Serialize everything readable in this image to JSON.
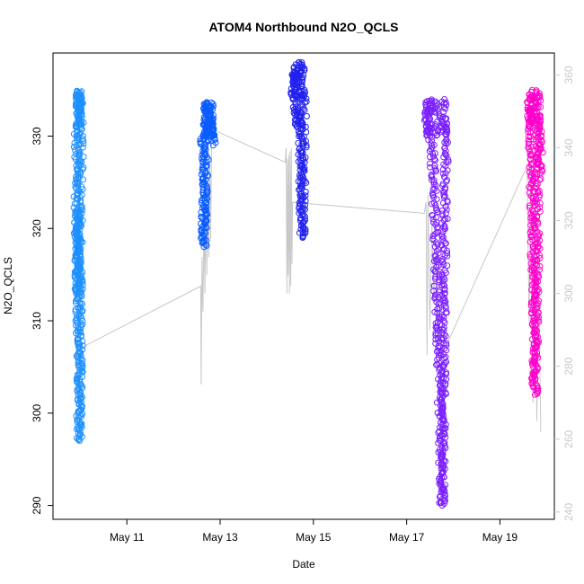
{
  "chart_data": {
    "type": "scatter",
    "title": "ATOM4 Northbound N2O_QCLS",
    "xlabel": "Date",
    "ylabel": "N2O_QCLS",
    "x_ticks": [
      "May 11",
      "May 13",
      "May 15",
      "May 17",
      "May 19"
    ],
    "y_ticks": [
      290,
      300,
      310,
      320,
      330
    ],
    "y2_ticks": [
      240,
      260,
      280,
      300,
      320,
      340,
      360
    ],
    "xlim": [
      "2016-05-09T10:00",
      "2016-05-20T04:00"
    ],
    "ylim": [
      288.5,
      339
    ],
    "y2lim": [
      238,
      366
    ],
    "secondary_color": "#c8c8c8",
    "series": [
      {
        "color": "#1e90ff",
        "x_range": [
          "2016-05-09T21:40",
          "2016-05-10T00:50"
        ],
        "points": [
          [
            "2016-05-09T21:45",
            331
          ],
          [
            "2016-05-09T21:55",
            330
          ],
          [
            "2016-05-09T22:05",
            329
          ],
          [
            "2016-05-09T22:10",
            325
          ],
          [
            "2016-05-09T22:20",
            320
          ],
          [
            "2016-05-09T22:25",
            316
          ],
          [
            "2016-05-09T22:30",
            313
          ],
          [
            "2016-05-09T22:40",
            318
          ],
          [
            "2016-05-09T22:50",
            322
          ],
          [
            "2016-05-09T23:00",
            314
          ],
          [
            "2016-05-09T23:10",
            308
          ],
          [
            "2016-05-09T23:20",
            305
          ],
          [
            "2016-05-09T23:30",
            301
          ],
          [
            "2016-05-09T23:40",
            297
          ],
          [
            "2016-05-09T23:50",
            312
          ],
          [
            "2016-05-10T00:00",
            319
          ],
          [
            "2016-05-10T00:10",
            326
          ],
          [
            "2016-05-10T00:20",
            331
          ],
          [
            "2016-05-10T00:30",
            333
          ],
          [
            "2016-05-10T00:40",
            334
          ]
        ]
      },
      {
        "color": "#0a5cff",
        "x_range": [
          "2016-05-12T15:10",
          "2016-05-12T20:30"
        ],
        "points": [
          [
            "2016-05-12T15:20",
            330
          ],
          [
            "2016-05-12T15:40",
            318
          ],
          [
            "2016-05-12T16:00",
            322
          ],
          [
            "2016-05-12T16:30",
            326
          ],
          [
            "2016-05-12T17:00",
            331
          ],
          [
            "2016-05-12T17:30",
            333
          ],
          [
            "2016-05-12T18:00",
            330
          ],
          [
            "2016-05-12T18:30",
            331
          ],
          [
            "2016-05-12T19:00",
            332
          ],
          [
            "2016-05-12T19:30",
            330
          ],
          [
            "2016-05-12T20:00",
            331
          ],
          [
            "2016-05-12T20:25",
            329
          ]
        ]
      },
      {
        "color": "#2222ee",
        "x_range": [
          "2016-05-14T13:20",
          "2016-05-14T19:30"
        ],
        "points": [
          [
            "2016-05-14T13:30",
            334
          ],
          [
            "2016-05-14T14:00",
            337
          ],
          [
            "2016-05-14T14:30",
            335
          ],
          [
            "2016-05-14T15:00",
            333
          ],
          [
            "2016-05-14T15:30",
            331
          ],
          [
            "2016-05-14T16:00",
            333
          ],
          [
            "2016-05-14T17:00",
            332
          ],
          [
            "2016-05-14T17:40",
            326
          ],
          [
            "2016-05-14T18:10",
            322
          ],
          [
            "2016-05-14T18:30",
            319
          ],
          [
            "2016-05-14T19:00",
            333
          ],
          [
            "2016-05-14T19:25",
            335
          ]
        ]
      },
      {
        "color": "#7a1fff",
        "x_range": [
          "2016-05-17T09:30",
          "2016-05-17T21:00"
        ],
        "points": [
          [
            "2016-05-17T10:00",
            331
          ],
          [
            "2016-05-17T11:00",
            333
          ],
          [
            "2016-05-17T12:00",
            330
          ],
          [
            "2016-05-17T13:00",
            329
          ],
          [
            "2016-05-17T14:00",
            325
          ],
          [
            "2016-05-17T15:00",
            317
          ],
          [
            "2016-05-17T16:00",
            309
          ],
          [
            "2016-05-17T16:30",
            306
          ],
          [
            "2016-05-17T17:00",
            303
          ],
          [
            "2016-05-17T17:30",
            297
          ],
          [
            "2016-05-17T18:00",
            293
          ],
          [
            "2016-05-17T18:20",
            290
          ],
          [
            "2016-05-17T18:40",
            300
          ],
          [
            "2016-05-17T19:00",
            310
          ],
          [
            "2016-05-17T19:30",
            320
          ],
          [
            "2016-05-17T20:00",
            328
          ],
          [
            "2016-05-17T20:30",
            331
          ]
        ]
      },
      {
        "color": "#ff00cc",
        "x_range": [
          "2016-05-19T15:00",
          "2016-05-19T21:00"
        ],
        "points": [
          [
            "2016-05-19T15:10",
            334
          ],
          [
            "2016-05-19T15:40",
            331
          ],
          [
            "2016-05-19T16:10",
            327
          ],
          [
            "2016-05-19T16:40",
            322
          ],
          [
            "2016-05-19T17:00",
            318
          ],
          [
            "2016-05-19T17:20",
            314
          ],
          [
            "2016-05-19T17:40",
            306
          ],
          [
            "2016-05-19T18:00",
            302
          ],
          [
            "2016-05-19T18:30",
            309
          ],
          [
            "2016-05-19T19:00",
            316
          ],
          [
            "2016-05-19T19:30",
            324
          ],
          [
            "2016-05-19T20:00",
            331
          ],
          [
            "2016-05-19T20:30",
            329
          ],
          [
            "2016-05-19T20:55",
            326
          ]
        ]
      }
    ],
    "secondary_line": [
      [
        "2016-05-09T22:00",
        285
      ],
      [
        "2016-05-09T22:30",
        270
      ],
      [
        "2016-05-09T23:30",
        345
      ],
      [
        "2016-05-10T00:15",
        285
      ],
      [
        "2016-05-12T14:00",
        302
      ],
      [
        "2016-05-12T14:15",
        275
      ],
      [
        "2016-05-12T14:40",
        310
      ],
      [
        "2016-05-12T15:10",
        295
      ],
      [
        "2016-05-12T15:40",
        320
      ],
      [
        "2016-05-12T16:10",
        300
      ],
      [
        "2016-05-12T16:40",
        330
      ],
      [
        "2016-05-12T17:10",
        305
      ],
      [
        "2016-05-12T17:40",
        335
      ],
      [
        "2016-05-12T18:10",
        310
      ],
      [
        "2016-05-12T18:40",
        338
      ],
      [
        "2016-05-12T19:10",
        315
      ],
      [
        "2016-05-12T19:40",
        343
      ],
      [
        "2016-05-12T20:10",
        345
      ],
      [
        "2016-05-14T09:30",
        336
      ],
      [
        "2016-05-14T10:00",
        340
      ],
      [
        "2016-05-14T10:20",
        300
      ],
      [
        "2016-05-14T10:40",
        337
      ],
      [
        "2016-05-14T11:00",
        305
      ],
      [
        "2016-05-14T11:20",
        338
      ],
      [
        "2016-05-14T11:40",
        300
      ],
      [
        "2016-05-14T12:00",
        339
      ],
      [
        "2016-05-14T12:20",
        302
      ],
      [
        "2016-05-14T12:40",
        340
      ],
      [
        "2016-05-14T13:00",
        308
      ],
      [
        "2016-05-14T13:15",
        325
      ],
      [
        "2016-05-17T09:00",
        322
      ],
      [
        "2016-05-17T10:00",
        325
      ],
      [
        "2016-05-17T10:30",
        283
      ],
      [
        "2016-05-17T11:00",
        327
      ],
      [
        "2016-05-17T12:00",
        290
      ],
      [
        "2016-05-17T13:00",
        320
      ],
      [
        "2016-05-17T14:00",
        298
      ],
      [
        "2016-05-17T15:00",
        312
      ],
      [
        "2016-05-17T16:00",
        288
      ],
      [
        "2016-05-17T17:00",
        305
      ],
      [
        "2016-05-17T18:00",
        298
      ],
      [
        "2016-05-17T19:00",
        284
      ],
      [
        "2016-05-19T14:00",
        335
      ],
      [
        "2016-05-19T15:00",
        292
      ],
      [
        "2016-05-19T16:00",
        340
      ],
      [
        "2016-05-19T17:00",
        270
      ],
      [
        "2016-05-19T18:00",
        325
      ],
      [
        "2016-05-19T19:00",
        265
      ],
      [
        "2016-05-19T20:00",
        300
      ],
      [
        "2016-05-19T21:00",
        262
      ]
    ]
  }
}
